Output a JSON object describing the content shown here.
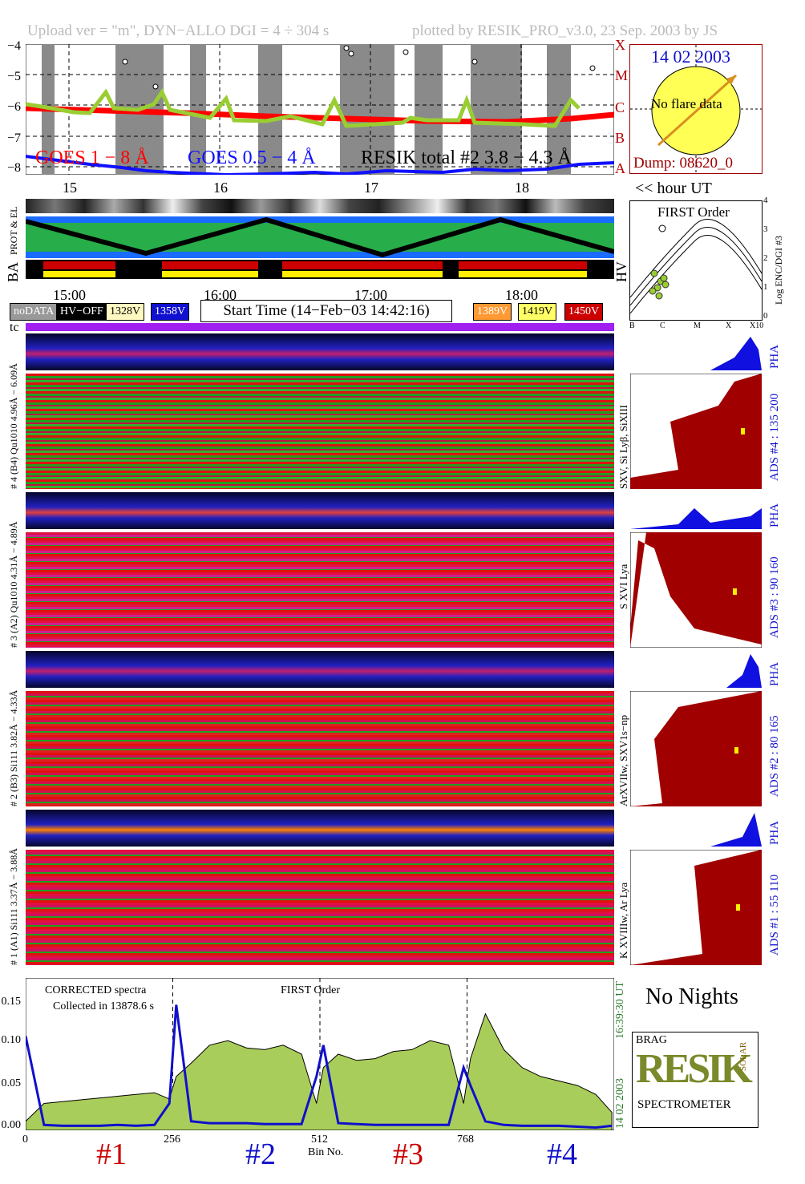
{
  "header": {
    "left": "Upload ver = \"m\", DYN−ALLO DGI =   4 ÷ 304 s",
    "right": "plotted by RESIK_PRO_v3.0, 23 Sep. 2003 by JS"
  },
  "goes": {
    "ylabels": [
      "−4",
      "−5",
      "−6",
      "−7",
      "−8"
    ],
    "classes": [
      "X",
      "M",
      "C",
      "B",
      "A"
    ],
    "legend_goes18": "GOES 1 − 8 Å",
    "legend_goes054": "GOES 0.5 − 4 Å",
    "legend_resik": "RESIK total #2  3.8 − 4.3 Å",
    "hours": [
      "15",
      "16",
      "17",
      "18"
    ],
    "colors": {
      "goes18": "#ff0000",
      "goes054": "#1010ff",
      "resik": "#9acd32"
    }
  },
  "sun": {
    "date": "14 02 2003",
    "note": "No flare data",
    "dump": "Dump: 08620_0"
  },
  "hour_ut": "<< hour UT",
  "labels": {
    "prot": "PROT & EL",
    "ba": "BA",
    "hv": "HV",
    "tc": "tc"
  },
  "times": [
    "15:00",
    "16:00",
    "17:00",
    "18:00"
  ],
  "status": {
    "items": [
      {
        "label": "noDATA",
        "bg": "#999999",
        "fg": "#ffffff"
      },
      {
        "label": "HV−OFF",
        "bg": "#000000",
        "fg": "#ffffff"
      },
      {
        "label": "1328V",
        "bg": "#fff8c0",
        "fg": "#000000"
      },
      {
        "label": "1358V",
        "bg": "#1010d0",
        "fg": "#ffffff"
      }
    ],
    "start_time": "Start Time (14−Feb−03 14:42:16)",
    "items_right": [
      {
        "label": "1389V",
        "bg": "#ff9933",
        "fg": "#ffffff"
      },
      {
        "label": "1419V",
        "bg": "#ffff66",
        "fg": "#000000"
      },
      {
        "label": "1450V",
        "bg": "#cc0000",
        "fg": "#ffffff"
      }
    ]
  },
  "first_order": {
    "title": "FIRST Order",
    "ylabels": [
      "4",
      "3",
      "2",
      "1",
      "0"
    ],
    "ylabel": "Log ENC/DGI #3",
    "xlabels": [
      "B",
      "C",
      "M",
      "X",
      "X10"
    ]
  },
  "channels": [
    {
      "pha_label": "6.09Å",
      "left_label": "# 4 (B4) Qu1010 4.96Å −",
      "right_label": "SXV, Si Lyβ, SiXIII",
      "ads": "ADS #4 :   135 200"
    },
    {
      "pha_label": "4.89Å",
      "left_label": "# 3 (A2) Qu1010 4.31Å −",
      "right_label": "S XVI Lya",
      "ads": "ADS #3 :    90 160"
    },
    {
      "pha_label": "4.33Å",
      "left_label": "# 2 (B3) Si111 3.82Å −",
      "right_label": "ArXVIIw, SXV1s−np",
      "ads": "ADS #2 :    80 165"
    },
    {
      "pha_label": "3.88Å",
      "left_label": "# 1 (A1) Si111 3.37Å −",
      "right_label": "K XVIIIw, Ar Lya",
      "ads": "ADS #1 :    55 110"
    }
  ],
  "pha": "PHA",
  "spectrum": {
    "corrected": "CORRECTED spectra",
    "collected": "Collected in 13878.6 s",
    "first_order": "FIRST Order",
    "ylabels": [
      "0.15",
      "0.10",
      "0.05",
      "0.00"
    ],
    "xlabels": [
      "0",
      "256",
      "512",
      "768"
    ],
    "xlabel": "Bin No.",
    "time": "16:39:30 UT",
    "date": "14 02 2003",
    "detectors": [
      {
        "label": "#1",
        "color": "#cc0000"
      },
      {
        "label": "#2",
        "color": "#1010cc"
      },
      {
        "label": "#3",
        "color": "#cc0000"
      },
      {
        "label": "#4",
        "color": "#1010cc"
      }
    ]
  },
  "no_nights": "No Nights",
  "logo": {
    "main": "RESIK",
    "sub": "SPECTROMETER",
    "tag": "BRAG",
    "side": "SOLAR"
  },
  "chart_data": {
    "type": "line",
    "title": "",
    "xlabel": "Bin No.",
    "ylabel": "",
    "xlim": [
      0,
      1024
    ],
    "ylim": [
      0,
      0.17
    ],
    "x": [
      0,
      32,
      64,
      96,
      128,
      160,
      192,
      224,
      250,
      262,
      288,
      320,
      352,
      384,
      416,
      448,
      480,
      506,
      518,
      544,
      576,
      608,
      640,
      672,
      704,
      736,
      762,
      774,
      800,
      832,
      864,
      896,
      928,
      960,
      992,
      1020
    ],
    "series": [
      {
        "values": [
          0.01,
          0.03,
          0.032,
          0.034,
          0.036,
          0.038,
          0.04,
          0.042,
          0.035,
          0.06,
          0.075,
          0.095,
          0.1,
          0.092,
          0.09,
          0.095,
          0.085,
          0.03,
          0.07,
          0.085,
          0.078,
          0.08,
          0.088,
          0.09,
          0.1,
          0.095,
          0.03,
          0.08,
          0.13,
          0.09,
          0.07,
          0.06,
          0.055,
          0.05,
          0.04,
          0.02
        ]
      },
      {
        "values": [
          0.105,
          0.006,
          0.005,
          0.005,
          0.005,
          0.006,
          0.005,
          0.006,
          0.03,
          0.14,
          0.01,
          0.008,
          0.008,
          0.008,
          0.007,
          0.007,
          0.007,
          0.06,
          0.095,
          0.008,
          0.007,
          0.006,
          0.006,
          0.006,
          0.006,
          0.006,
          0.07,
          0.05,
          0.01,
          0.006,
          0.005,
          0.005,
          0.005,
          0.004,
          0.003,
          0.005
        ]
      }
    ]
  }
}
